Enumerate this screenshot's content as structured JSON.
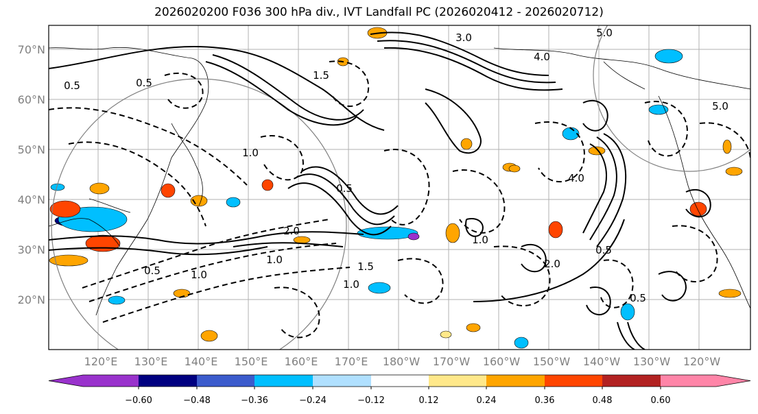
{
  "title": "2026020200 F036 300 hPa div., IVT Landfall PC (2026020412 - 2026020712)",
  "lat_labels": [
    "70°N",
    "60°N",
    "50°N",
    "40°N",
    "30°N",
    "20°N"
  ],
  "lon_labels": [
    "120°E",
    "130°E",
    "140°E",
    "150°E",
    "160°E",
    "170°E",
    "180°W",
    "170°W",
    "160°W",
    "150°W",
    "140°W",
    "130°W",
    "120°W"
  ],
  "contour_labels": [
    "0.5",
    "1.0",
    "2.0",
    "3.0",
    "4.0",
    "5.0",
    "1.5",
    "0.5",
    "1.0",
    "2.0",
    "0.5",
    "1.0",
    "1.5",
    "0.5",
    "1.0",
    "4.0",
    "5.0",
    "0.5",
    "1.0",
    "0.5"
  ],
  "colorbar": {
    "colors": [
      "#9932cc",
      "#000080",
      "#3b5bcc",
      "#00bfff",
      "#b0e0ff",
      "#ffffff",
      "#ffe88a",
      "#ffa500",
      "#ff4500",
      "#b22222",
      "#ff85a8"
    ],
    "tick_labels": [
      "−0.60",
      "−0.48",
      "−0.36",
      "−0.24",
      "−0.12",
      "0.12",
      "0.24",
      "0.36",
      "0.48",
      "0.60"
    ]
  },
  "shading": {
    "neg_colors": [
      "#00bfff",
      "#3b5bcc",
      "#000080",
      "#9932cc"
    ],
    "pos_colors": [
      "#ffa500",
      "#ff4500",
      "#ffe88a"
    ]
  }
}
